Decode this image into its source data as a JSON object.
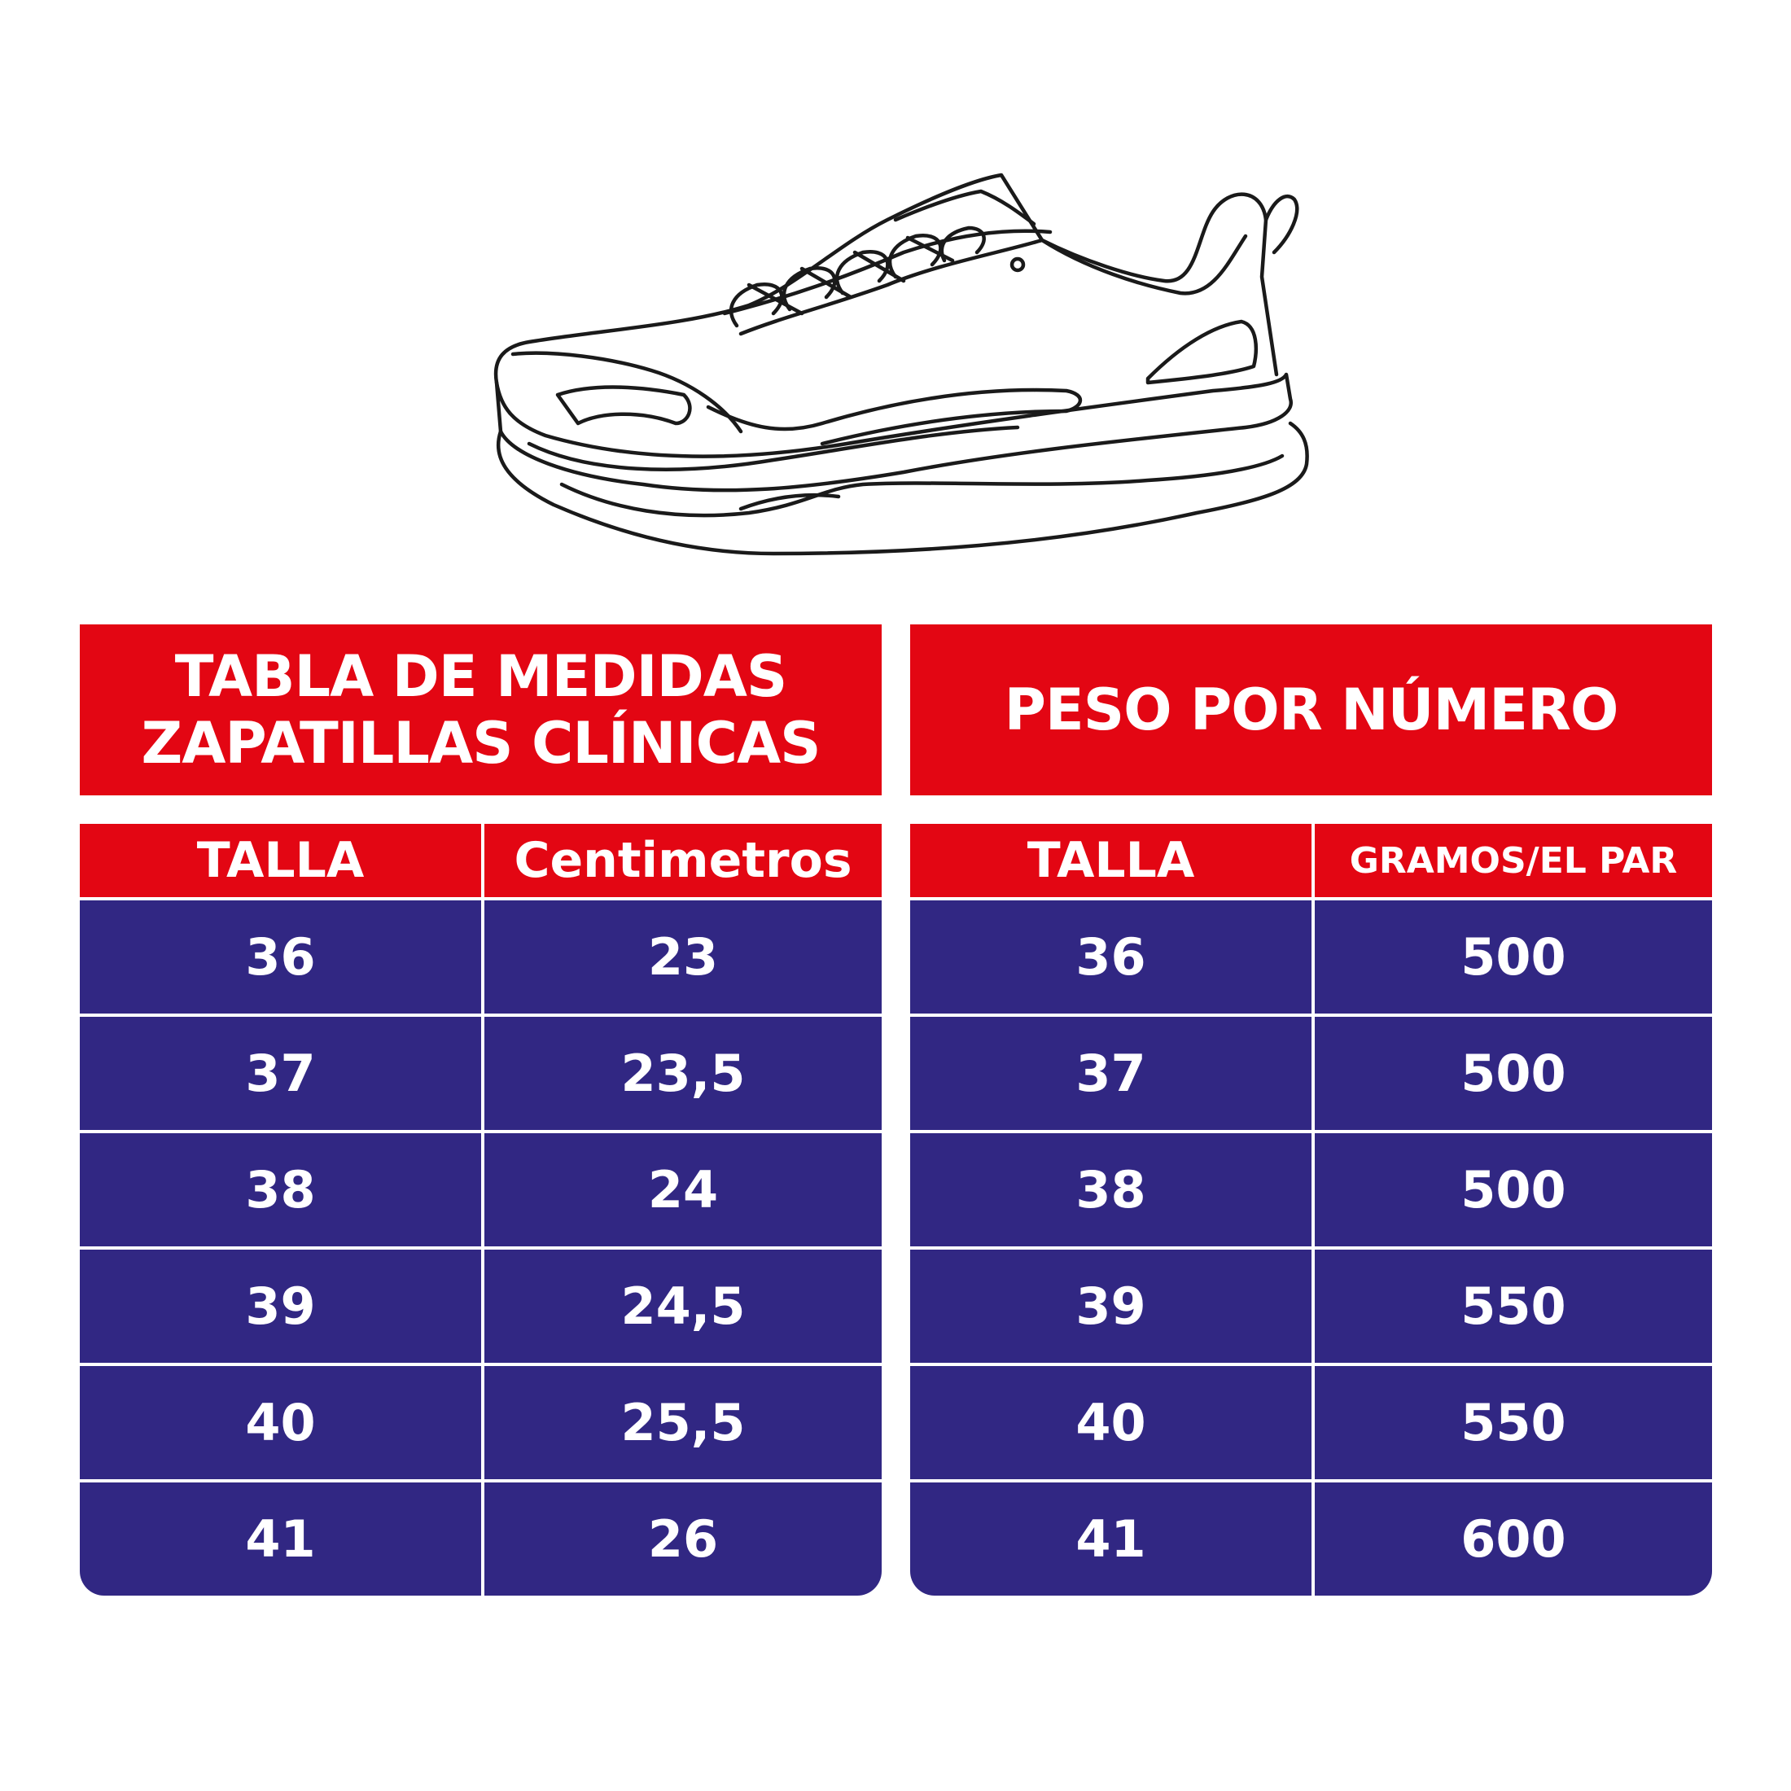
{
  "colors": {
    "red": "#e30613",
    "navy": "#312783",
    "white": "#ffffff"
  },
  "illustration": {
    "icon": "sneaker-outline-icon"
  },
  "size_table": {
    "title_line1": "TABLA DE MEDIDAS",
    "title_line2": "ZAPATILLAS CLÍNICAS",
    "col1_header": "TALLA",
    "col2_header": "Centimetros",
    "rows": [
      {
        "talla": "36",
        "value": "23"
      },
      {
        "talla": "37",
        "value": "23,5"
      },
      {
        "talla": "38",
        "value": "24"
      },
      {
        "talla": "39",
        "value": "24,5"
      },
      {
        "talla": "40",
        "value": "25,5"
      },
      {
        "talla": "41",
        "value": "26"
      }
    ]
  },
  "weight_table": {
    "title": "PESO POR NÚMERO",
    "col1_header": "TALLA",
    "col2_header": "GRAMOS/EL PAR",
    "rows": [
      {
        "talla": "36",
        "value": "500"
      },
      {
        "talla": "37",
        "value": "500"
      },
      {
        "talla": "38",
        "value": "500"
      },
      {
        "talla": "39",
        "value": "550"
      },
      {
        "talla": "40",
        "value": "550"
      },
      {
        "talla": "41",
        "value": "600"
      }
    ]
  }
}
